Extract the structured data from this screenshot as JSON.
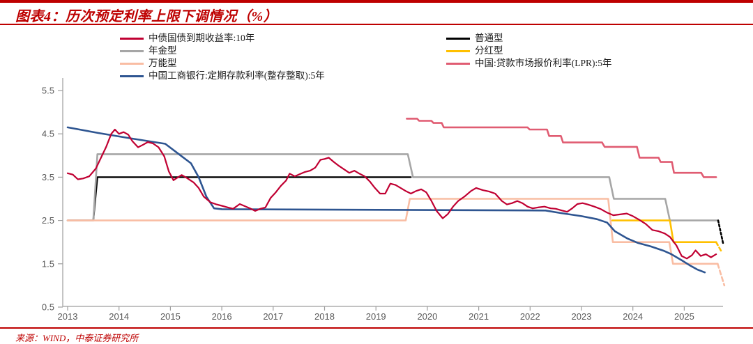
{
  "header": {
    "title": "图表4：历次预定利率上限下调情况（%）"
  },
  "source": {
    "label": "来源：WIND，中泰证券研究所"
  },
  "chart_data": {
    "type": "line",
    "title": "历次预定利率上限下调情况（%）",
    "xlabel": "",
    "ylabel": "",
    "ylim": [
      0.5,
      5.5
    ],
    "xlim": [
      2013,
      2025.8
    ],
    "grid": false,
    "legend_position": "top",
    "yticks": [
      "5.5",
      "4.5",
      "3.5",
      "2.5",
      "1.5",
      "0.5"
    ],
    "xticks": [
      2013,
      2014,
      2015,
      2016,
      2017,
      2018,
      2019,
      2020,
      2021,
      2022,
      2023,
      2024,
      2025
    ],
    "legend": {
      "left": [
        0,
        1,
        2,
        3
      ],
      "right": [
        4,
        5,
        6
      ]
    },
    "draw_order": [
      4,
      1,
      2,
      5,
      3,
      6,
      0,
      7,
      8,
      9
    ],
    "series": [
      {
        "id": "treasury-10y",
        "name": "中债国债到期收益率:10年",
        "color": "#c00032",
        "width": 2.2,
        "dash": null,
        "points": [
          [
            2013.0,
            3.59
          ],
          [
            2013.1,
            3.56
          ],
          [
            2013.2,
            3.45
          ],
          [
            2013.3,
            3.47
          ],
          [
            2013.42,
            3.52
          ],
          [
            2013.55,
            3.7
          ],
          [
            2013.65,
            3.95
          ],
          [
            2013.75,
            4.2
          ],
          [
            2013.85,
            4.5
          ],
          [
            2013.92,
            4.6
          ],
          [
            2014.0,
            4.5
          ],
          [
            2014.09,
            4.54
          ],
          [
            2014.18,
            4.48
          ],
          [
            2014.26,
            4.33
          ],
          [
            2014.37,
            4.19
          ],
          [
            2014.47,
            4.25
          ],
          [
            2014.56,
            4.31
          ],
          [
            2014.66,
            4.28
          ],
          [
            2014.77,
            4.19
          ],
          [
            2014.88,
            3.98
          ],
          [
            2014.97,
            3.63
          ],
          [
            2015.06,
            3.43
          ],
          [
            2015.15,
            3.5
          ],
          [
            2015.22,
            3.55
          ],
          [
            2015.32,
            3.48
          ],
          [
            2015.45,
            3.38
          ],
          [
            2015.55,
            3.25
          ],
          [
            2015.65,
            3.05
          ],
          [
            2015.78,
            2.92
          ],
          [
            2015.9,
            2.87
          ],
          [
            2016.0,
            2.84
          ],
          [
            2016.12,
            2.8
          ],
          [
            2016.22,
            2.77
          ],
          [
            2016.35,
            2.88
          ],
          [
            2016.45,
            2.83
          ],
          [
            2016.55,
            2.78
          ],
          [
            2016.65,
            2.72
          ],
          [
            2016.75,
            2.77
          ],
          [
            2016.85,
            2.8
          ],
          [
            2016.95,
            3.02
          ],
          [
            2017.05,
            3.15
          ],
          [
            2017.15,
            3.3
          ],
          [
            2017.25,
            3.42
          ],
          [
            2017.32,
            3.58
          ],
          [
            2017.42,
            3.52
          ],
          [
            2017.52,
            3.57
          ],
          [
            2017.62,
            3.62
          ],
          [
            2017.72,
            3.65
          ],
          [
            2017.82,
            3.72
          ],
          [
            2017.92,
            3.9
          ],
          [
            2018.0,
            3.92
          ],
          [
            2018.08,
            3.95
          ],
          [
            2018.18,
            3.85
          ],
          [
            2018.28,
            3.76
          ],
          [
            2018.38,
            3.68
          ],
          [
            2018.48,
            3.6
          ],
          [
            2018.58,
            3.65
          ],
          [
            2018.68,
            3.58
          ],
          [
            2018.78,
            3.52
          ],
          [
            2018.88,
            3.4
          ],
          [
            2018.98,
            3.25
          ],
          [
            2019.08,
            3.12
          ],
          [
            2019.18,
            3.12
          ],
          [
            2019.28,
            3.35
          ],
          [
            2019.38,
            3.32
          ],
          [
            2019.48,
            3.25
          ],
          [
            2019.58,
            3.18
          ],
          [
            2019.68,
            3.12
          ],
          [
            2019.78,
            3.18
          ],
          [
            2019.88,
            3.22
          ],
          [
            2019.98,
            3.15
          ],
          [
            2020.08,
            2.95
          ],
          [
            2020.18,
            2.72
          ],
          [
            2020.3,
            2.55
          ],
          [
            2020.4,
            2.65
          ],
          [
            2020.5,
            2.82
          ],
          [
            2020.6,
            2.95
          ],
          [
            2020.72,
            3.05
          ],
          [
            2020.85,
            3.18
          ],
          [
            2020.95,
            3.25
          ],
          [
            2021.08,
            3.2
          ],
          [
            2021.2,
            3.17
          ],
          [
            2021.32,
            3.12
          ],
          [
            2021.45,
            2.95
          ],
          [
            2021.55,
            2.87
          ],
          [
            2021.65,
            2.9
          ],
          [
            2021.75,
            2.95
          ],
          [
            2021.85,
            2.9
          ],
          [
            2021.95,
            2.82
          ],
          [
            2022.05,
            2.78
          ],
          [
            2022.15,
            2.8
          ],
          [
            2022.28,
            2.82
          ],
          [
            2022.4,
            2.78
          ],
          [
            2022.5,
            2.77
          ],
          [
            2022.62,
            2.73
          ],
          [
            2022.72,
            2.7
          ],
          [
            2022.82,
            2.78
          ],
          [
            2022.92,
            2.88
          ],
          [
            2023.02,
            2.9
          ],
          [
            2023.12,
            2.87
          ],
          [
            2023.25,
            2.82
          ],
          [
            2023.38,
            2.76
          ],
          [
            2023.5,
            2.68
          ],
          [
            2023.62,
            2.62
          ],
          [
            2023.75,
            2.64
          ],
          [
            2023.88,
            2.66
          ],
          [
            2024.0,
            2.6
          ],
          [
            2024.12,
            2.52
          ],
          [
            2024.25,
            2.42
          ],
          [
            2024.38,
            2.28
          ],
          [
            2024.5,
            2.25
          ],
          [
            2024.62,
            2.2
          ],
          [
            2024.72,
            2.12
          ],
          [
            2024.85,
            1.92
          ],
          [
            2024.95,
            1.68
          ],
          [
            2025.05,
            1.62
          ],
          [
            2025.15,
            1.7
          ],
          [
            2025.22,
            1.81
          ],
          [
            2025.32,
            1.68
          ],
          [
            2025.42,
            1.72
          ],
          [
            2025.52,
            1.65
          ],
          [
            2025.62,
            1.72
          ]
        ]
      },
      {
        "id": "annuity",
        "name": "年金型",
        "color": "#a6a6a6",
        "width": 2.6,
        "dash": null,
        "points": [
          [
            2013.0,
            2.5
          ],
          [
            2013.5,
            2.5
          ],
          [
            2013.58,
            4.03
          ],
          [
            2019.62,
            4.03
          ],
          [
            2019.72,
            3.5
          ],
          [
            2023.54,
            3.5
          ],
          [
            2023.63,
            3.0
          ],
          [
            2024.63,
            3.0
          ],
          [
            2024.72,
            2.5
          ],
          [
            2025.66,
            2.5
          ]
        ]
      },
      {
        "id": "universal",
        "name": "万能型",
        "color": "#f9bda3",
        "width": 2.6,
        "dash": null,
        "points": [
          [
            2013.0,
            2.5
          ],
          [
            2019.58,
            2.5
          ],
          [
            2019.66,
            3.0
          ],
          [
            2023.52,
            3.0
          ],
          [
            2023.61,
            2.0
          ],
          [
            2024.71,
            2.0
          ],
          [
            2024.78,
            1.5
          ],
          [
            2025.65,
            1.5
          ]
        ]
      },
      {
        "id": "icbc-deposit-5y",
        "name": "中国工商银行:定期存款利率(整存整取):5年",
        "color": "#2e5591",
        "width": 2.6,
        "dash": null,
        "points": [
          [
            2013.0,
            4.65
          ],
          [
            2013.6,
            4.52
          ],
          [
            2014.2,
            4.4
          ],
          [
            2014.9,
            4.27
          ],
          [
            2015.2,
            4.0
          ],
          [
            2015.4,
            3.82
          ],
          [
            2015.55,
            3.5
          ],
          [
            2015.7,
            3.05
          ],
          [
            2015.85,
            2.78
          ],
          [
            2016.0,
            2.76
          ],
          [
            2022.3,
            2.73
          ],
          [
            2022.6,
            2.67
          ],
          [
            2023.0,
            2.6
          ],
          [
            2023.3,
            2.53
          ],
          [
            2023.5,
            2.45
          ],
          [
            2023.65,
            2.25
          ],
          [
            2023.9,
            2.08
          ],
          [
            2024.1,
            1.98
          ],
          [
            2024.35,
            1.9
          ],
          [
            2024.6,
            1.8
          ],
          [
            2024.75,
            1.72
          ],
          [
            2024.95,
            1.58
          ],
          [
            2025.1,
            1.47
          ],
          [
            2025.25,
            1.37
          ],
          [
            2025.4,
            1.3
          ]
        ]
      },
      {
        "id": "ordinary",
        "name": "普通型",
        "color": "#000000",
        "width": 2.4,
        "dash": null,
        "points": [
          [
            2013.0,
            2.5
          ],
          [
            2013.5,
            2.5
          ],
          [
            2013.58,
            3.5
          ],
          [
            2019.68,
            3.5
          ]
        ]
      },
      {
        "id": "participating",
        "name": "分红型",
        "color": "#ffc000",
        "width": 2.6,
        "dash": null,
        "points": [
          [
            2023.6,
            2.5
          ],
          [
            2024.72,
            2.5
          ],
          [
            2024.79,
            2.0
          ],
          [
            2025.62,
            2.0
          ]
        ]
      },
      {
        "id": "lpr-5y",
        "name": "中国:贷款市场报价利率(LPR):5年",
        "color": "#e05c72",
        "width": 2.6,
        "dash": null,
        "points": [
          [
            2019.6,
            4.85
          ],
          [
            2019.8,
            4.85
          ],
          [
            2019.84,
            4.8
          ],
          [
            2020.08,
            4.8
          ],
          [
            2020.12,
            4.75
          ],
          [
            2020.28,
            4.75
          ],
          [
            2020.32,
            4.65
          ],
          [
            2021.95,
            4.65
          ],
          [
            2021.99,
            4.6
          ],
          [
            2022.33,
            4.6
          ],
          [
            2022.37,
            4.45
          ],
          [
            2022.6,
            4.45
          ],
          [
            2022.64,
            4.3
          ],
          [
            2023.4,
            4.3
          ],
          [
            2023.45,
            4.2
          ],
          [
            2024.08,
            4.2
          ],
          [
            2024.13,
            3.95
          ],
          [
            2024.5,
            3.95
          ],
          [
            2024.54,
            3.85
          ],
          [
            2024.76,
            3.85
          ],
          [
            2024.8,
            3.6
          ],
          [
            2025.33,
            3.6
          ],
          [
            2025.38,
            3.5
          ],
          [
            2025.62,
            3.5
          ]
        ]
      },
      {
        "id": "ordinary-dashed-tail",
        "name": "普通型",
        "color": "#000000",
        "width": 2.6,
        "dash": "3 3",
        "points": [
          [
            2025.66,
            2.5
          ],
          [
            2025.76,
            1.95
          ]
        ]
      },
      {
        "id": "participating-dashed-tail",
        "name": "分红型",
        "color": "#ffc000",
        "width": 2.6,
        "dash": "5 4",
        "points": [
          [
            2025.62,
            2.0
          ],
          [
            2025.74,
            1.75
          ]
        ]
      },
      {
        "id": "universal-dashed-tail",
        "name": "万能型",
        "color": "#f9bda3",
        "width": 2.6,
        "dash": "6 4",
        "points": [
          [
            2025.65,
            1.5
          ],
          [
            2025.78,
            1.0
          ]
        ]
      }
    ]
  }
}
